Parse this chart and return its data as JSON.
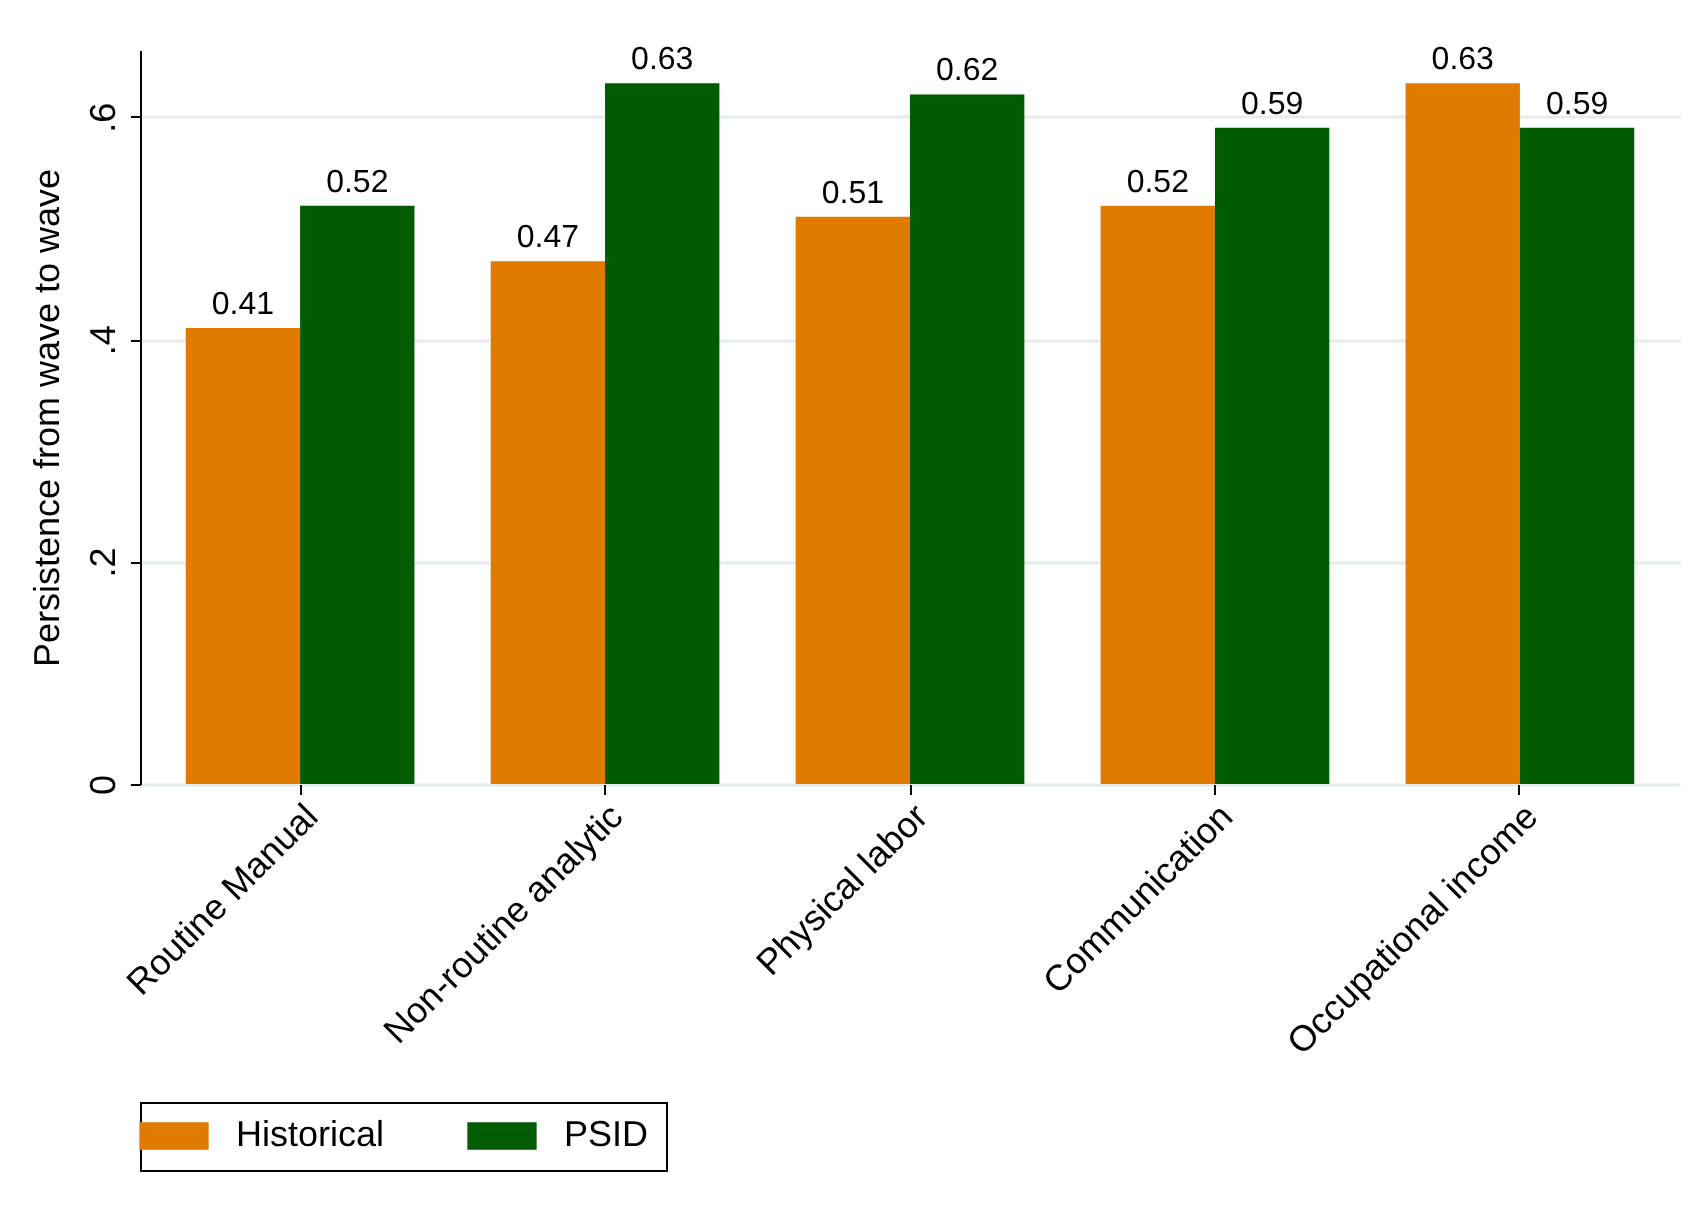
{
  "chart_data": {
    "type": "bar",
    "ylabel": "Persistence from wave to wave",
    "categories": [
      "Routine Manual",
      "Non-routine analytic",
      "Physical labor",
      "Communication",
      "Occupational income"
    ],
    "series": [
      {
        "name": "Historical",
        "color": "#e07b00",
        "values": [
          0.41,
          0.47,
          0.51,
          0.52,
          0.63
        ]
      },
      {
        "name": "PSID",
        "color": "#005c00",
        "values": [
          0.52,
          0.63,
          0.62,
          0.59,
          0.59
        ]
      }
    ],
    "ylim": [
      0,
      0.66
    ],
    "yticks": [
      {
        "value": 0,
        "label": "0"
      },
      {
        "value": 0.2,
        "label": ".2"
      },
      {
        "value": 0.4,
        "label": ".4"
      },
      {
        "value": 0.6,
        "label": ".6"
      }
    ],
    "grid": "y",
    "legend": "bottom",
    "data_labels": true
  }
}
